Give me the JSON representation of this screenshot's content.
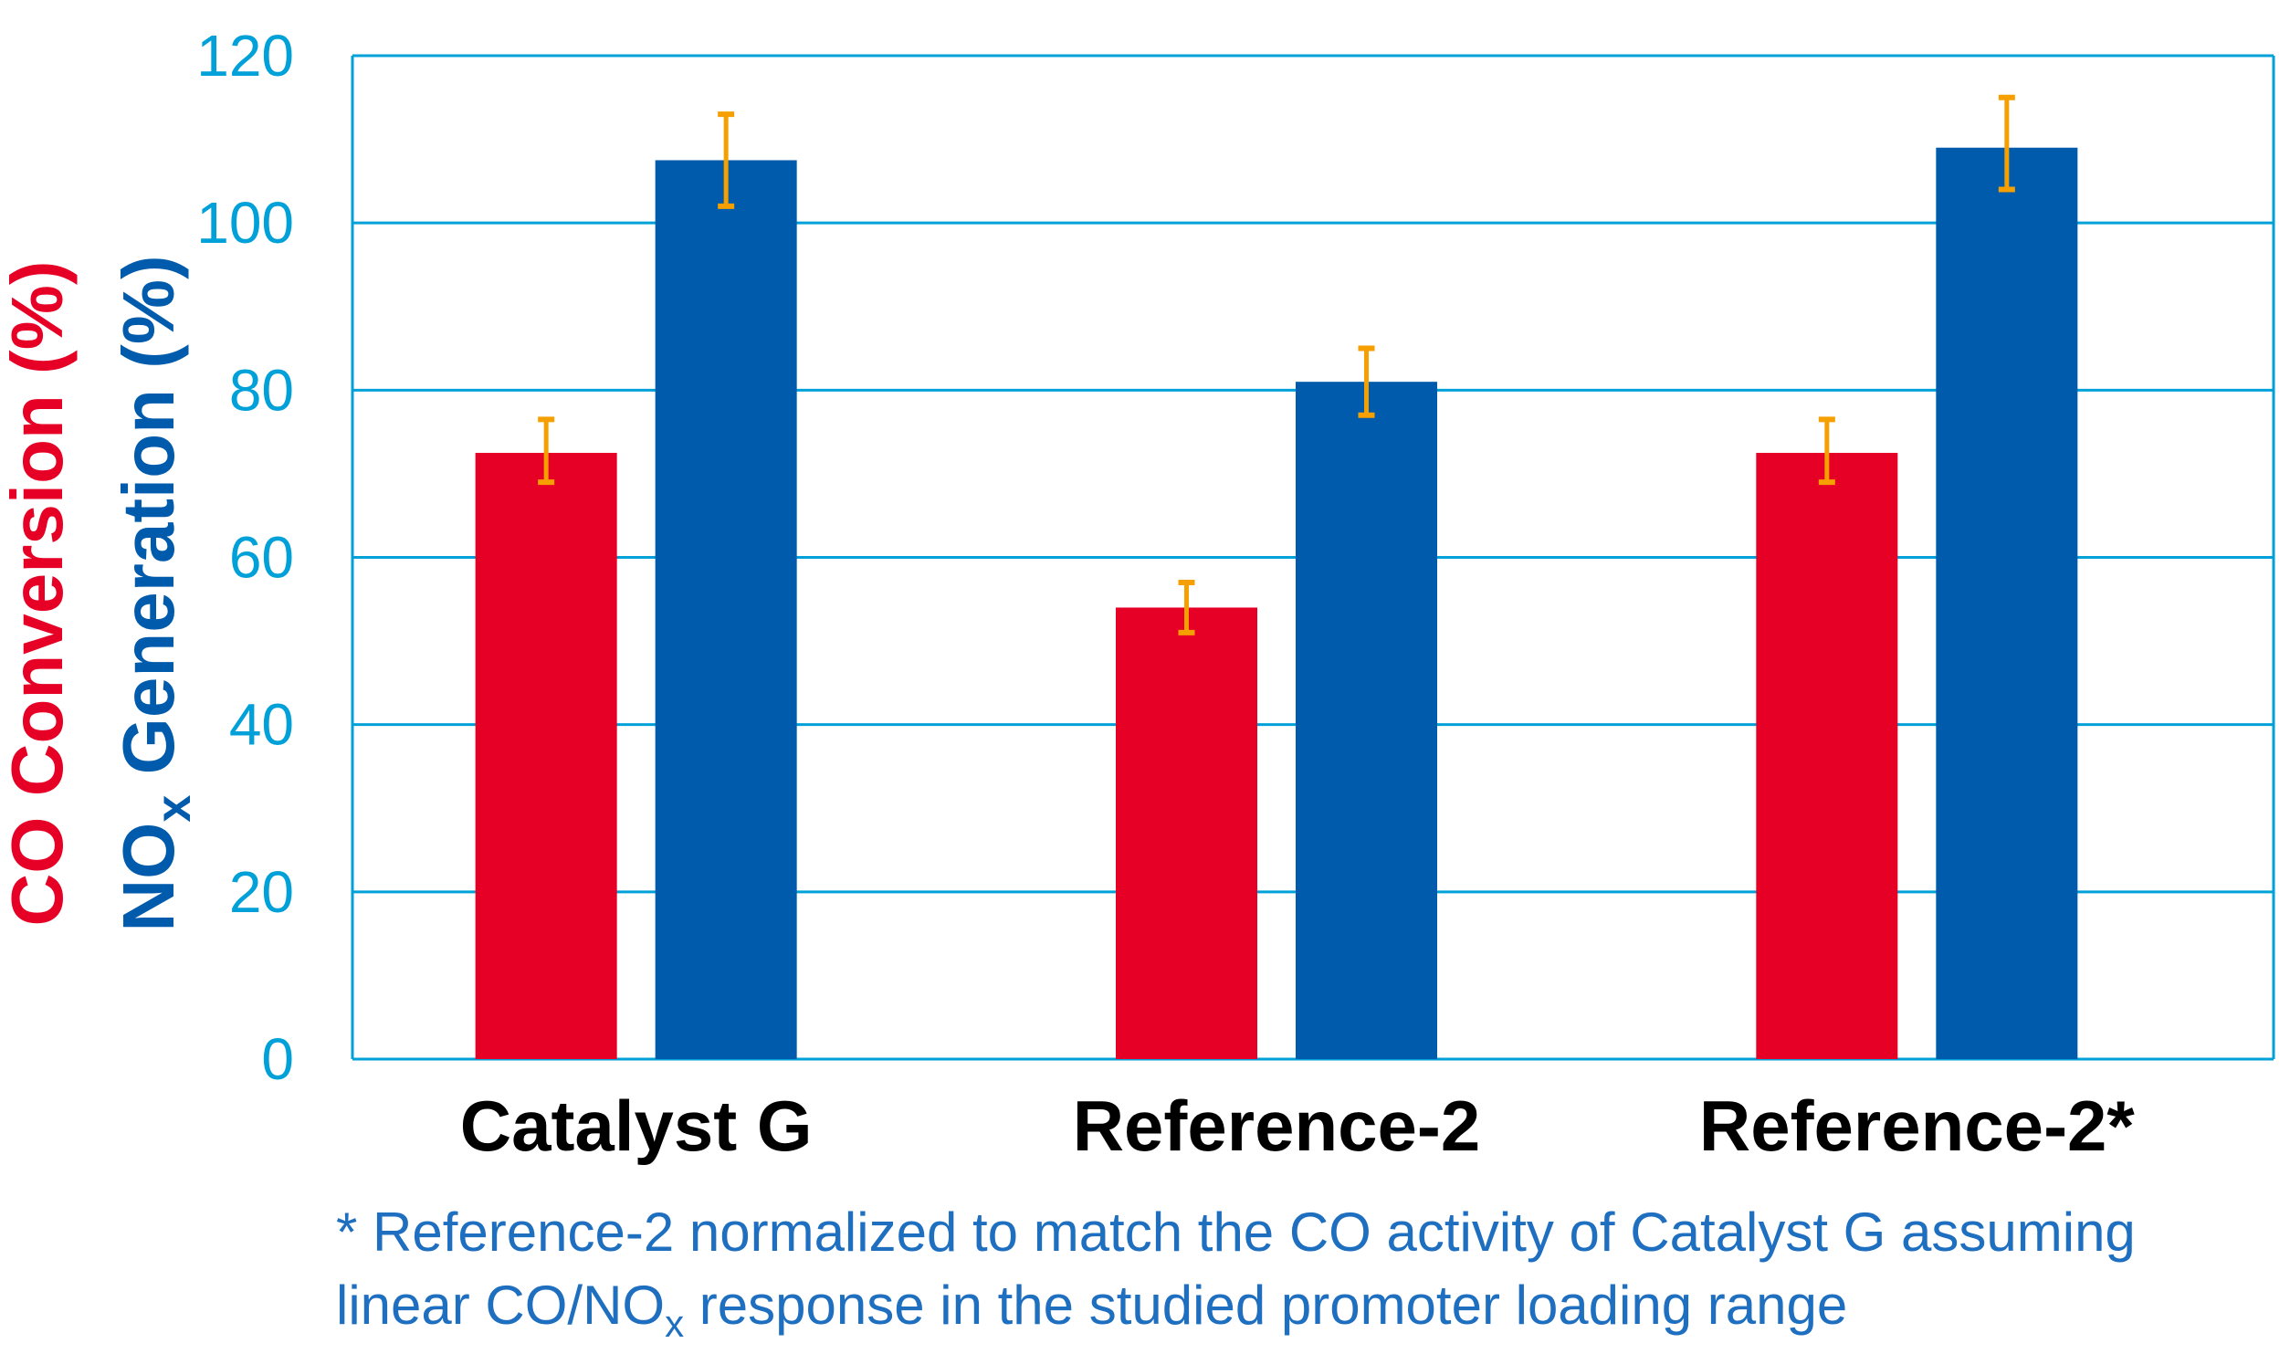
{
  "chart_data": {
    "type": "bar",
    "categories": [
      "Catalyst G",
      "Reference-2",
      "Reference-2*"
    ],
    "series": [
      {
        "name": "CO Conversion",
        "values": [
          72.5,
          54,
          72.5
        ],
        "errors": [
          [
            3.5,
            4
          ],
          [
            3,
            3
          ],
          [
            3.5,
            4
          ]
        ]
      },
      {
        "name": "NOx Generation",
        "values": [
          107.5,
          81,
          109
        ],
        "errors": [
          [
            5.5,
            5.5
          ],
          [
            4,
            4
          ],
          [
            5,
            6
          ]
        ]
      }
    ],
    "ylim": [
      0,
      120
    ],
    "yticks": [
      0,
      20,
      40,
      60,
      80,
      100,
      120
    ],
    "grid": true,
    "ylabel_line1": "CO Conversion (%)",
    "ylabel_line2_main": "NO",
    "ylabel_line2_sub": "x",
    "ylabel_line2_rest": " Generation (%)",
    "footnote_line1": "* Reference-2 normalized to match the CO activity of Catalyst G assuming",
    "footnote_line2_a": "linear CO/NO",
    "footnote_line2_sub": "x",
    "footnote_line2_b": " response in the studied promoter loading range"
  },
  "colors": {
    "co": "#e60026",
    "nox": "#005bac",
    "axis": "#00a0d8",
    "error": "#f5a000",
    "text": "#000000",
    "footnote": "#1f6fc0"
  }
}
